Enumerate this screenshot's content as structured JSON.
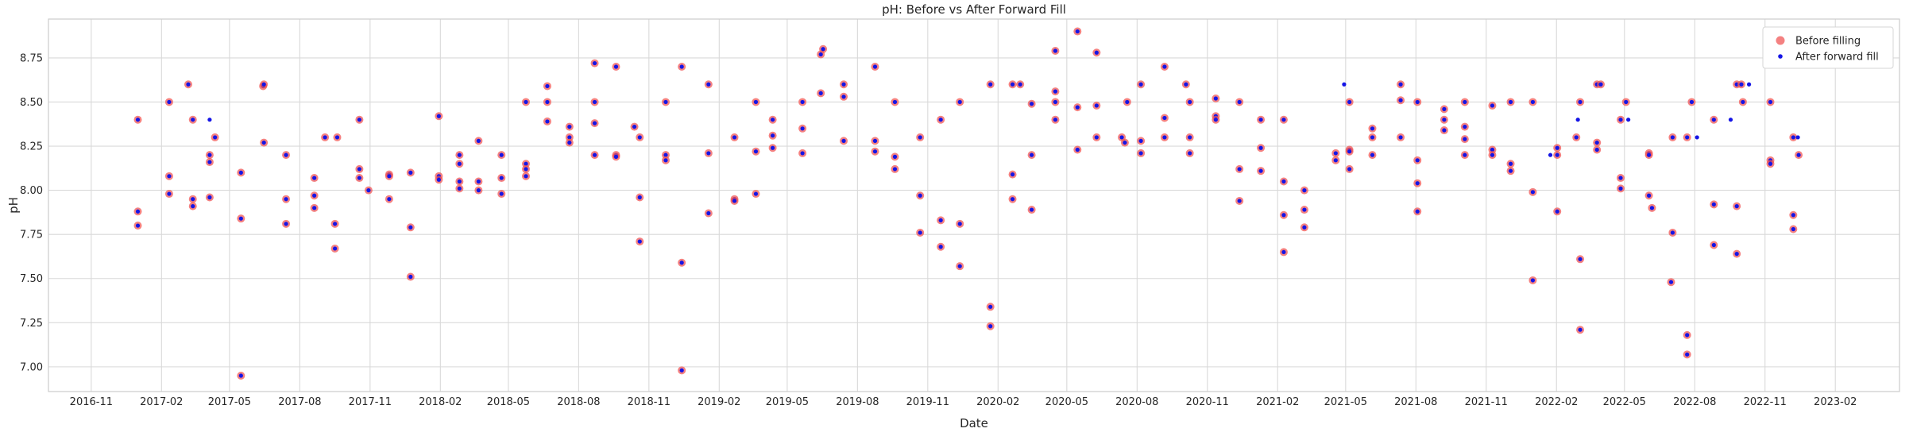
{
  "chart_data": {
    "type": "scatter",
    "title": "pH: Before vs After Forward Fill",
    "xlabel": "Date",
    "ylabel": "pH",
    "x_axis_kind": "date",
    "xlim": [
      "2016-09-06",
      "2023-04-26"
    ],
    "ylim": [
      6.86,
      8.97
    ],
    "grid": true,
    "legend_position": "top-right",
    "xticks": [
      "2016-11",
      "2017-02",
      "2017-05",
      "2017-08",
      "2017-11",
      "2018-02",
      "2018-05",
      "2018-08",
      "2018-11",
      "2019-02",
      "2019-05",
      "2019-08",
      "2019-11",
      "2020-02",
      "2020-05",
      "2020-08",
      "2020-11",
      "2021-02",
      "2021-05",
      "2021-08",
      "2021-11",
      "2022-02",
      "2022-05",
      "2022-08",
      "2022-11",
      "2023-02"
    ],
    "yticks": [
      "7.00",
      "7.25",
      "7.50",
      "7.75",
      "8.00",
      "8.25",
      "8.50",
      "8.75"
    ],
    "colors": {
      "before": "#f05050",
      "after": "#1515e6"
    },
    "series": [
      {
        "name": "Before filling",
        "marker": "large-circle",
        "points": [
          [
            "2017-01-01",
            8.4
          ],
          [
            "2017-01-01",
            7.88
          ],
          [
            "2017-01-01",
            7.8
          ],
          [
            "2017-02-11",
            8.08
          ],
          [
            "2017-02-11",
            7.98
          ],
          [
            "2017-02-11",
            8.5
          ],
          [
            "2017-03-08",
            8.6
          ],
          [
            "2017-03-14",
            8.4
          ],
          [
            "2017-03-14",
            7.95
          ],
          [
            "2017-03-14",
            7.91
          ],
          [
            "2017-04-05",
            8.2
          ],
          [
            "2017-04-05",
            8.16
          ],
          [
            "2017-04-05",
            7.96
          ],
          [
            "2017-04-12",
            8.3
          ],
          [
            "2017-05-16",
            8.1
          ],
          [
            "2017-05-16",
            7.84
          ],
          [
            "2017-05-16",
            6.95
          ],
          [
            "2017-06-14",
            8.59
          ],
          [
            "2017-06-15",
            8.6
          ],
          [
            "2017-06-15",
            8.27
          ],
          [
            "2017-07-14",
            8.2
          ],
          [
            "2017-07-14",
            7.95
          ],
          [
            "2017-07-14",
            7.81
          ],
          [
            "2017-08-20",
            8.07
          ],
          [
            "2017-08-20",
            7.97
          ],
          [
            "2017-08-20",
            7.9
          ],
          [
            "2017-09-03",
            8.3
          ],
          [
            "2017-09-19",
            8.3
          ],
          [
            "2017-09-16",
            7.81
          ],
          [
            "2017-09-16",
            7.67
          ],
          [
            "2017-10-18",
            8.4
          ],
          [
            "2017-10-18",
            8.12
          ],
          [
            "2017-10-18",
            8.07
          ],
          [
            "2017-10-30",
            8.0
          ],
          [
            "2017-11-26",
            8.09
          ],
          [
            "2017-11-26",
            8.08
          ],
          [
            "2017-11-26",
            7.95
          ],
          [
            "2017-12-24",
            8.1
          ],
          [
            "2017-12-24",
            7.79
          ],
          [
            "2017-12-24",
            7.51
          ],
          [
            "2018-01-30",
            8.42
          ],
          [
            "2018-01-30",
            8.08
          ],
          [
            "2018-01-30",
            8.06
          ],
          [
            "2018-02-26",
            8.2
          ],
          [
            "2018-02-26",
            8.15
          ],
          [
            "2018-02-26",
            8.05
          ],
          [
            "2018-02-26",
            8.01
          ],
          [
            "2018-03-23",
            8.28
          ],
          [
            "2018-03-23",
            8.05
          ],
          [
            "2018-03-23",
            8.0
          ],
          [
            "2018-04-22",
            8.2
          ],
          [
            "2018-04-22",
            8.07
          ],
          [
            "2018-04-22",
            7.98
          ],
          [
            "2018-05-24",
            8.5
          ],
          [
            "2018-05-24",
            8.15
          ],
          [
            "2018-05-24",
            8.12
          ],
          [
            "2018-05-24",
            8.08
          ],
          [
            "2018-06-21",
            8.59
          ],
          [
            "2018-06-21",
            8.5
          ],
          [
            "2018-06-21",
            8.39
          ],
          [
            "2018-07-20",
            8.36
          ],
          [
            "2018-07-20",
            8.3
          ],
          [
            "2018-07-20",
            8.27
          ],
          [
            "2018-08-22",
            8.72
          ],
          [
            "2018-08-22",
            8.5
          ],
          [
            "2018-08-22",
            8.38
          ],
          [
            "2018-08-22",
            8.2
          ],
          [
            "2018-09-19",
            8.7
          ],
          [
            "2018-09-19",
            8.2
          ],
          [
            "2018-09-19",
            8.19
          ],
          [
            "2018-10-13",
            8.36
          ],
          [
            "2018-10-20",
            8.3
          ],
          [
            "2018-10-20",
            7.96
          ],
          [
            "2018-10-20",
            7.71
          ],
          [
            "2018-11-23",
            8.5
          ],
          [
            "2018-11-23",
            8.2
          ],
          [
            "2018-11-23",
            8.17
          ],
          [
            "2018-12-14",
            8.7
          ],
          [
            "2018-12-14",
            7.59
          ],
          [
            "2018-12-14",
            6.98
          ],
          [
            "2019-01-18",
            8.6
          ],
          [
            "2019-01-18",
            8.21
          ],
          [
            "2019-01-18",
            7.87
          ],
          [
            "2019-02-21",
            8.3
          ],
          [
            "2019-02-21",
            7.95
          ],
          [
            "2019-02-21",
            7.94
          ],
          [
            "2019-03-21",
            8.5
          ],
          [
            "2019-03-21",
            8.22
          ],
          [
            "2019-03-21",
            7.98
          ],
          [
            "2019-04-12",
            8.4
          ],
          [
            "2019-04-12",
            8.31
          ],
          [
            "2019-04-12",
            8.24
          ],
          [
            "2019-05-21",
            8.5
          ],
          [
            "2019-05-21",
            8.35
          ],
          [
            "2019-05-21",
            8.21
          ],
          [
            "2019-06-14",
            8.77
          ],
          [
            "2019-06-17",
            8.8
          ],
          [
            "2019-06-14",
            8.55
          ],
          [
            "2019-07-14",
            8.6
          ],
          [
            "2019-07-14",
            8.53
          ],
          [
            "2019-07-14",
            8.28
          ],
          [
            "2019-08-24",
            8.7
          ],
          [
            "2019-08-24",
            8.28
          ],
          [
            "2019-08-24",
            8.22
          ],
          [
            "2019-09-19",
            8.5
          ],
          [
            "2019-09-19",
            8.19
          ],
          [
            "2019-09-19",
            8.12
          ],
          [
            "2019-10-22",
            8.3
          ],
          [
            "2019-10-22",
            7.97
          ],
          [
            "2019-10-22",
            7.76
          ],
          [
            "2019-11-18",
            8.4
          ],
          [
            "2019-11-18",
            7.83
          ],
          [
            "2019-11-18",
            7.68
          ],
          [
            "2019-12-13",
            8.5
          ],
          [
            "2019-12-13",
            7.81
          ],
          [
            "2019-12-13",
            7.57
          ],
          [
            "2020-01-22",
            8.6
          ],
          [
            "2020-01-22",
            7.34
          ],
          [
            "2020-01-22",
            7.23
          ],
          [
            "2020-02-20",
            8.6
          ],
          [
            "2020-02-20",
            8.09
          ],
          [
            "2020-02-20",
            7.95
          ],
          [
            "2020-03-01",
            8.6
          ],
          [
            "2020-03-16",
            8.49
          ],
          [
            "2020-03-16",
            8.2
          ],
          [
            "2020-03-16",
            7.89
          ],
          [
            "2020-04-16",
            8.79
          ],
          [
            "2020-04-16",
            8.56
          ],
          [
            "2020-04-16",
            8.5
          ],
          [
            "2020-04-16",
            8.4
          ],
          [
            "2020-05-15",
            8.9
          ],
          [
            "2020-05-15",
            8.47
          ],
          [
            "2020-05-15",
            8.23
          ],
          [
            "2020-06-09",
            8.78
          ],
          [
            "2020-06-09",
            8.48
          ],
          [
            "2020-06-09",
            8.3
          ],
          [
            "2020-07-12",
            8.3
          ],
          [
            "2020-07-16",
            8.27
          ],
          [
            "2020-07-19",
            8.5
          ],
          [
            "2020-08-06",
            8.6
          ],
          [
            "2020-08-06",
            8.28
          ],
          [
            "2020-08-06",
            8.21
          ],
          [
            "2020-09-06",
            8.7
          ],
          [
            "2020-09-06",
            8.41
          ],
          [
            "2020-09-06",
            8.3
          ],
          [
            "2020-10-04",
            8.6
          ],
          [
            "2020-10-09",
            8.5
          ],
          [
            "2020-10-09",
            8.3
          ],
          [
            "2020-10-09",
            8.21
          ],
          [
            "2020-11-12",
            8.52
          ],
          [
            "2020-11-12",
            8.42
          ],
          [
            "2020-11-12",
            8.4
          ],
          [
            "2020-12-13",
            8.5
          ],
          [
            "2020-12-13",
            8.12
          ],
          [
            "2020-12-13",
            7.94
          ],
          [
            "2021-01-10",
            8.4
          ],
          [
            "2021-01-10",
            8.24
          ],
          [
            "2021-01-10",
            8.11
          ],
          [
            "2021-02-09",
            8.4
          ],
          [
            "2021-02-09",
            8.05
          ],
          [
            "2021-02-09",
            7.86
          ],
          [
            "2021-02-09",
            7.65
          ],
          [
            "2021-03-08",
            8.0
          ],
          [
            "2021-03-08",
            7.89
          ],
          [
            "2021-03-08",
            7.79
          ],
          [
            "2021-04-18",
            8.21
          ],
          [
            "2021-04-18",
            8.17
          ],
          [
            "2021-05-06",
            8.5
          ],
          [
            "2021-05-06",
            8.23
          ],
          [
            "2021-05-06",
            8.22
          ],
          [
            "2021-05-06",
            8.12
          ],
          [
            "2021-06-05",
            8.35
          ],
          [
            "2021-06-05",
            8.3
          ],
          [
            "2021-06-05",
            8.2
          ],
          [
            "2021-07-12",
            8.6
          ],
          [
            "2021-07-12",
            8.51
          ],
          [
            "2021-07-12",
            8.3
          ],
          [
            "2021-08-03",
            8.5
          ],
          [
            "2021-08-03",
            8.17
          ],
          [
            "2021-08-03",
            8.04
          ],
          [
            "2021-08-03",
            7.88
          ],
          [
            "2021-09-07",
            8.46
          ],
          [
            "2021-09-07",
            8.4
          ],
          [
            "2021-09-07",
            8.34
          ],
          [
            "2021-10-04",
            8.5
          ],
          [
            "2021-10-04",
            8.36
          ],
          [
            "2021-10-04",
            8.29
          ],
          [
            "2021-10-04",
            8.2
          ],
          [
            "2021-11-09",
            8.48
          ],
          [
            "2021-11-09",
            8.23
          ],
          [
            "2021-11-09",
            8.2
          ],
          [
            "2021-12-03",
            8.5
          ],
          [
            "2021-12-03",
            8.15
          ],
          [
            "2021-12-03",
            8.11
          ],
          [
            "2022-01-01",
            8.5
          ],
          [
            "2022-01-01",
            7.99
          ],
          [
            "2022-01-01",
            7.49
          ],
          [
            "2022-02-02",
            8.24
          ],
          [
            "2022-02-02",
            8.2
          ],
          [
            "2022-02-02",
            7.88
          ],
          [
            "2022-02-27",
            8.3
          ],
          [
            "2022-03-04",
            8.5
          ],
          [
            "2022-03-04",
            7.61
          ],
          [
            "2022-03-04",
            7.21
          ],
          [
            "2022-03-26",
            8.6
          ],
          [
            "2022-03-31",
            8.6
          ],
          [
            "2022-03-26",
            8.27
          ],
          [
            "2022-03-26",
            8.23
          ],
          [
            "2022-04-26",
            8.4
          ],
          [
            "2022-04-26",
            8.07
          ],
          [
            "2022-04-26",
            8.01
          ],
          [
            "2022-05-03",
            8.5
          ],
          [
            "2022-06-02",
            8.21
          ],
          [
            "2022-06-02",
            8.2
          ],
          [
            "2022-06-02",
            7.97
          ],
          [
            "2022-06-06",
            7.9
          ],
          [
            "2022-07-03",
            8.3
          ],
          [
            "2022-07-03",
            7.76
          ],
          [
            "2022-07-01",
            7.48
          ],
          [
            "2022-07-22",
            8.3
          ],
          [
            "2022-07-22",
            7.18
          ],
          [
            "2022-07-22",
            7.07
          ],
          [
            "2022-07-28",
            8.5
          ],
          [
            "2022-08-26",
            8.4
          ],
          [
            "2022-08-26",
            7.92
          ],
          [
            "2022-08-26",
            7.69
          ],
          [
            "2022-09-25",
            8.6
          ],
          [
            "2022-09-25",
            7.91
          ],
          [
            "2022-09-25",
            7.64
          ],
          [
            "2022-10-01",
            8.6
          ],
          [
            "2022-10-03",
            8.5
          ],
          [
            "2022-11-08",
            8.5
          ],
          [
            "2022-11-08",
            8.17
          ],
          [
            "2022-11-08",
            8.15
          ],
          [
            "2022-12-08",
            8.3
          ],
          [
            "2022-12-08",
            7.86
          ],
          [
            "2022-12-08",
            7.78
          ],
          [
            "2022-12-15",
            8.2
          ]
        ]
      },
      {
        "name": "After forward fill",
        "marker": "small-dot",
        "points": [
          [
            "2017-04-05",
            8.4
          ],
          [
            "2021-04-29",
            8.6
          ],
          [
            "2022-01-24",
            8.2
          ],
          [
            "2022-03-01",
            8.4
          ],
          [
            "2022-05-06",
            8.4
          ],
          [
            "2022-08-04",
            8.3
          ],
          [
            "2022-09-17",
            8.4
          ],
          [
            "2022-10-11",
            8.6
          ],
          [
            "2022-12-14",
            8.3
          ]
        ]
      }
    ]
  }
}
